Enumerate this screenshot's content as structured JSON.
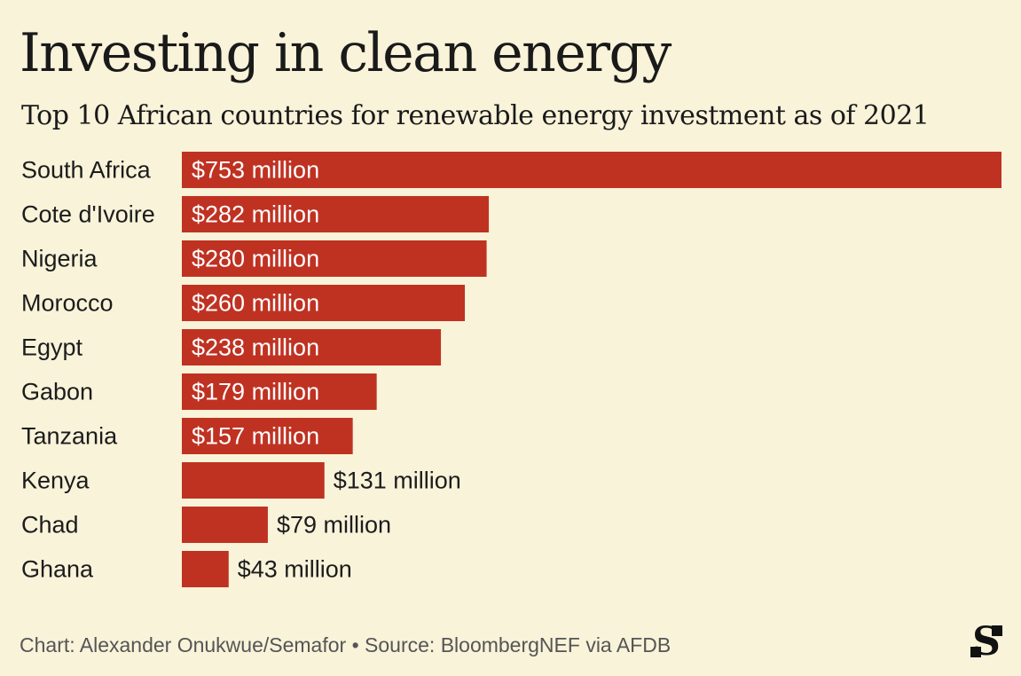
{
  "title": "Investing in clean energy",
  "subtitle": "Top 10 African countries for renewable energy investment as of 2021",
  "footer": {
    "credit": "Chart: Alexander Onukwue/Semafor",
    "separator": "•",
    "source": "Source: BloombergNEF via AFDB"
  },
  "colors": {
    "background": "#f8f3d9",
    "bar": "#bf3222",
    "text": "#1c1c1c",
    "label_inside": "#ffffff"
  },
  "chart_data": {
    "type": "bar",
    "orientation": "horizontal",
    "categories": [
      "South Africa",
      "Cote d'Ivoire",
      "Nigeria",
      "Morocco",
      "Egypt",
      "Gabon",
      "Tanzania",
      "Kenya",
      "Chad",
      "Ghana"
    ],
    "values": [
      753,
      282,
      280,
      260,
      238,
      179,
      157,
      131,
      79,
      43
    ],
    "data_labels": [
      "$753 million",
      "$282 million",
      "$280 million",
      "$260 million",
      "$238 million",
      "$179 million",
      "$157 million",
      "$131 million",
      "$79 million",
      "$43 million"
    ],
    "unit": "million USD",
    "title": "Investing in clean energy",
    "subtitle": "Top 10 African countries for renewable energy investment as of 2021",
    "xlim": [
      0,
      753
    ],
    "grid": false,
    "legend": "none"
  }
}
